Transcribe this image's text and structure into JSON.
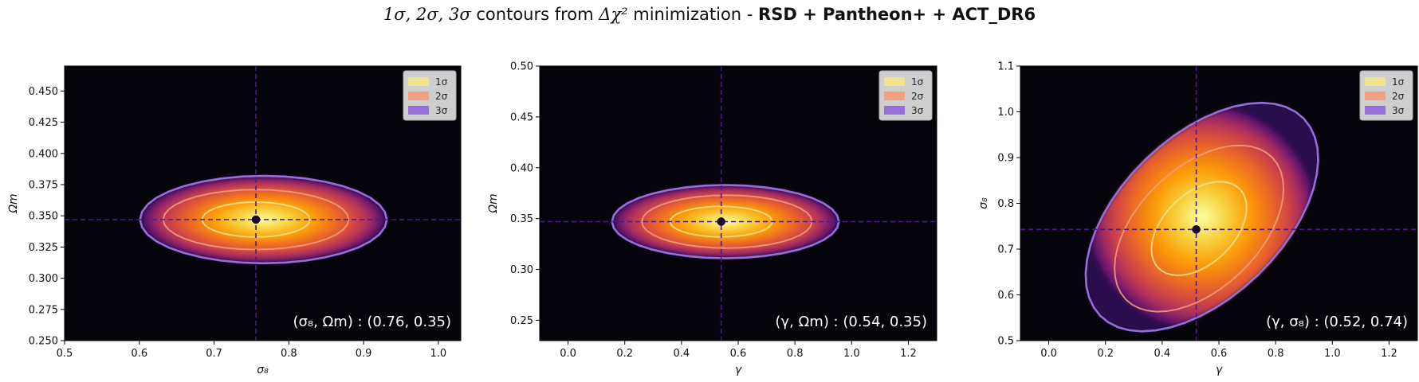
{
  "figure": {
    "title_prefix_math": "1σ, 2σ, 3σ",
    "title_mid": " contours from ",
    "title_math": "Δχ²",
    "title_mid2": " minimization - ",
    "title_bold": "RSD + Pantheon+ + ACT_DR6"
  },
  "colors": {
    "background": "#05040a",
    "sigma1": "#f0e48f",
    "sigma2": "#f5a07c",
    "sigma3": "#9370db",
    "crosshair": "#4b1a8a",
    "marker": "#1a0a33"
  },
  "legend": [
    {
      "label": "1σ",
      "color": "#f0e48f"
    },
    {
      "label": "2σ",
      "color": "#f5a07c"
    },
    {
      "label": "3σ",
      "color": "#9370db"
    }
  ],
  "chart_data": [
    {
      "type": "contour",
      "xlabel": "σ₈",
      "ylabel": "Ωm",
      "xlim": [
        0.5,
        1.03
      ],
      "ylim": [
        0.25,
        0.47
      ],
      "xticks": [
        "0.5",
        "0.6",
        "0.7",
        "0.8",
        "0.9",
        "1.0"
      ],
      "yticks": [
        "0.250",
        "0.275",
        "0.300",
        "0.325",
        "0.350",
        "0.375",
        "0.400",
        "0.425",
        "0.450"
      ],
      "best_fit": [
        0.756,
        0.347
      ],
      "contours": [
        {
          "level": "1σ",
          "center": [
            0.756,
            0.347
          ],
          "half_width": [
            0.072,
            0.014
          ],
          "tilt": 0
        },
        {
          "level": "2σ",
          "center": [
            0.756,
            0.347
          ],
          "half_width": [
            0.124,
            0.024
          ],
          "tilt": 0
        },
        {
          "level": "3σ",
          "center": [
            0.766,
            0.347
          ],
          "half_width": [
            0.165,
            0.035
          ],
          "tilt": 0
        }
      ],
      "annotation": "(σ₈, Ωm) : (0.76, 0.35)",
      "legend_position": "upper-right"
    },
    {
      "type": "contour",
      "xlabel": "γ",
      "ylabel": "Ωm",
      "xlim": [
        -0.1,
        1.3
      ],
      "ylim": [
        0.23,
        0.5
      ],
      "xticks": [
        "0.0",
        "0.2",
        "0.4",
        "0.6",
        "0.8",
        "1.0",
        "1.2"
      ],
      "yticks": [
        "0.25",
        "0.30",
        "0.35",
        "0.40",
        "0.45",
        "0.50"
      ],
      "best_fit": [
        0.54,
        0.347
      ],
      "contours": [
        {
          "level": "1σ",
          "center": [
            0.54,
            0.347
          ],
          "half_width": [
            0.18,
            0.015
          ],
          "tilt": 0
        },
        {
          "level": "2σ",
          "center": [
            0.56,
            0.347
          ],
          "half_width": [
            0.3,
            0.026
          ],
          "tilt": 0
        },
        {
          "level": "3σ",
          "center": [
            0.555,
            0.347
          ],
          "half_width": [
            0.4,
            0.036
          ],
          "tilt": 0
        }
      ],
      "annotation": "(γ, Ωm) : (0.54, 0.35)",
      "legend_position": "upper-right"
    },
    {
      "type": "contour",
      "xlabel": "γ",
      "ylabel": "σ₈",
      "xlim": [
        -0.1,
        1.3
      ],
      "ylim": [
        0.5,
        1.1
      ],
      "xticks": [
        "0.0",
        "0.2",
        "0.4",
        "0.6",
        "0.8",
        "1.0",
        "1.2"
      ],
      "yticks": [
        "0.5",
        "0.6",
        "0.7",
        "0.8",
        "0.9",
        "1.0",
        "1.1"
      ],
      "best_fit": [
        0.52,
        0.743
      ],
      "contours": [
        {
          "level": "1σ",
          "center": [
            0.53,
            0.745
          ],
          "major": 0.2,
          "minor": 0.035,
          "slope_deg": 32
        },
        {
          "level": "2σ",
          "center": [
            0.53,
            0.745
          ],
          "major": 0.36,
          "minor": 0.06,
          "slope_deg": 32
        },
        {
          "level": "3σ",
          "center": [
            0.54,
            0.77
          ],
          "major": 0.5,
          "minor": 0.08,
          "slope_deg": 32
        }
      ],
      "annotation": "(γ, σ₈) : (0.52, 0.74)",
      "legend_position": "upper-right"
    }
  ]
}
